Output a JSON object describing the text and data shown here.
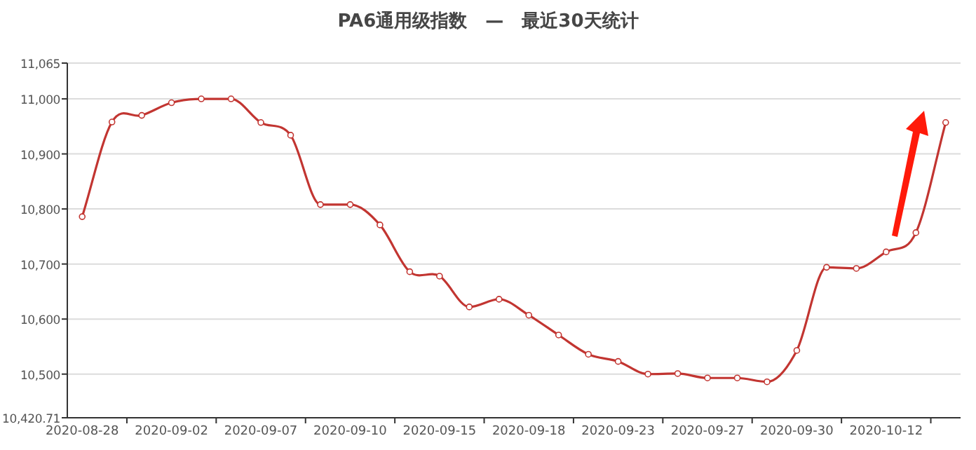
{
  "chart_data": {
    "type": "line",
    "title": "PA6通用级指数　—　最近30天统计",
    "categories": [
      "2020-08-28",
      null,
      null,
      "2020-09-02",
      null,
      null,
      "2020-09-07",
      null,
      null,
      "2020-09-10",
      null,
      null,
      "2020-09-15",
      null,
      null,
      "2020-09-18",
      null,
      null,
      "2020-09-23",
      null,
      null,
      "2020-09-27",
      null,
      null,
      "2020-09-30",
      null,
      null,
      "2020-10-12",
      null,
      null
    ],
    "series": [
      {
        "color": "#c23531",
        "values": [
          10786,
          10958,
          10970,
          10993,
          11000,
          11000,
          10957,
          10934,
          10808,
          10808,
          10771,
          10686,
          10678,
          10622,
          10636,
          10607,
          10571,
          10536,
          10523,
          10500,
          10501,
          10493,
          10493,
          10486,
          10543,
          10694,
          10692,
          10722,
          10757,
          10957
        ]
      }
    ],
    "ylim": [
      10420.71,
      11065
    ],
    "yticks": [
      {
        "value": 10420.71,
        "label": "10,420.71"
      },
      {
        "value": 10500,
        "label": "10,500"
      },
      {
        "value": 10600,
        "label": "10,600"
      },
      {
        "value": 10700,
        "label": "10,700"
      },
      {
        "value": 10800,
        "label": "10,800"
      },
      {
        "value": 10900,
        "label": "10,900"
      },
      {
        "value": 11000,
        "label": "11,000"
      },
      {
        "value": 11065,
        "label": "11,065"
      }
    ],
    "grid": "y",
    "marker": "circle",
    "line_style": "solid"
  }
}
